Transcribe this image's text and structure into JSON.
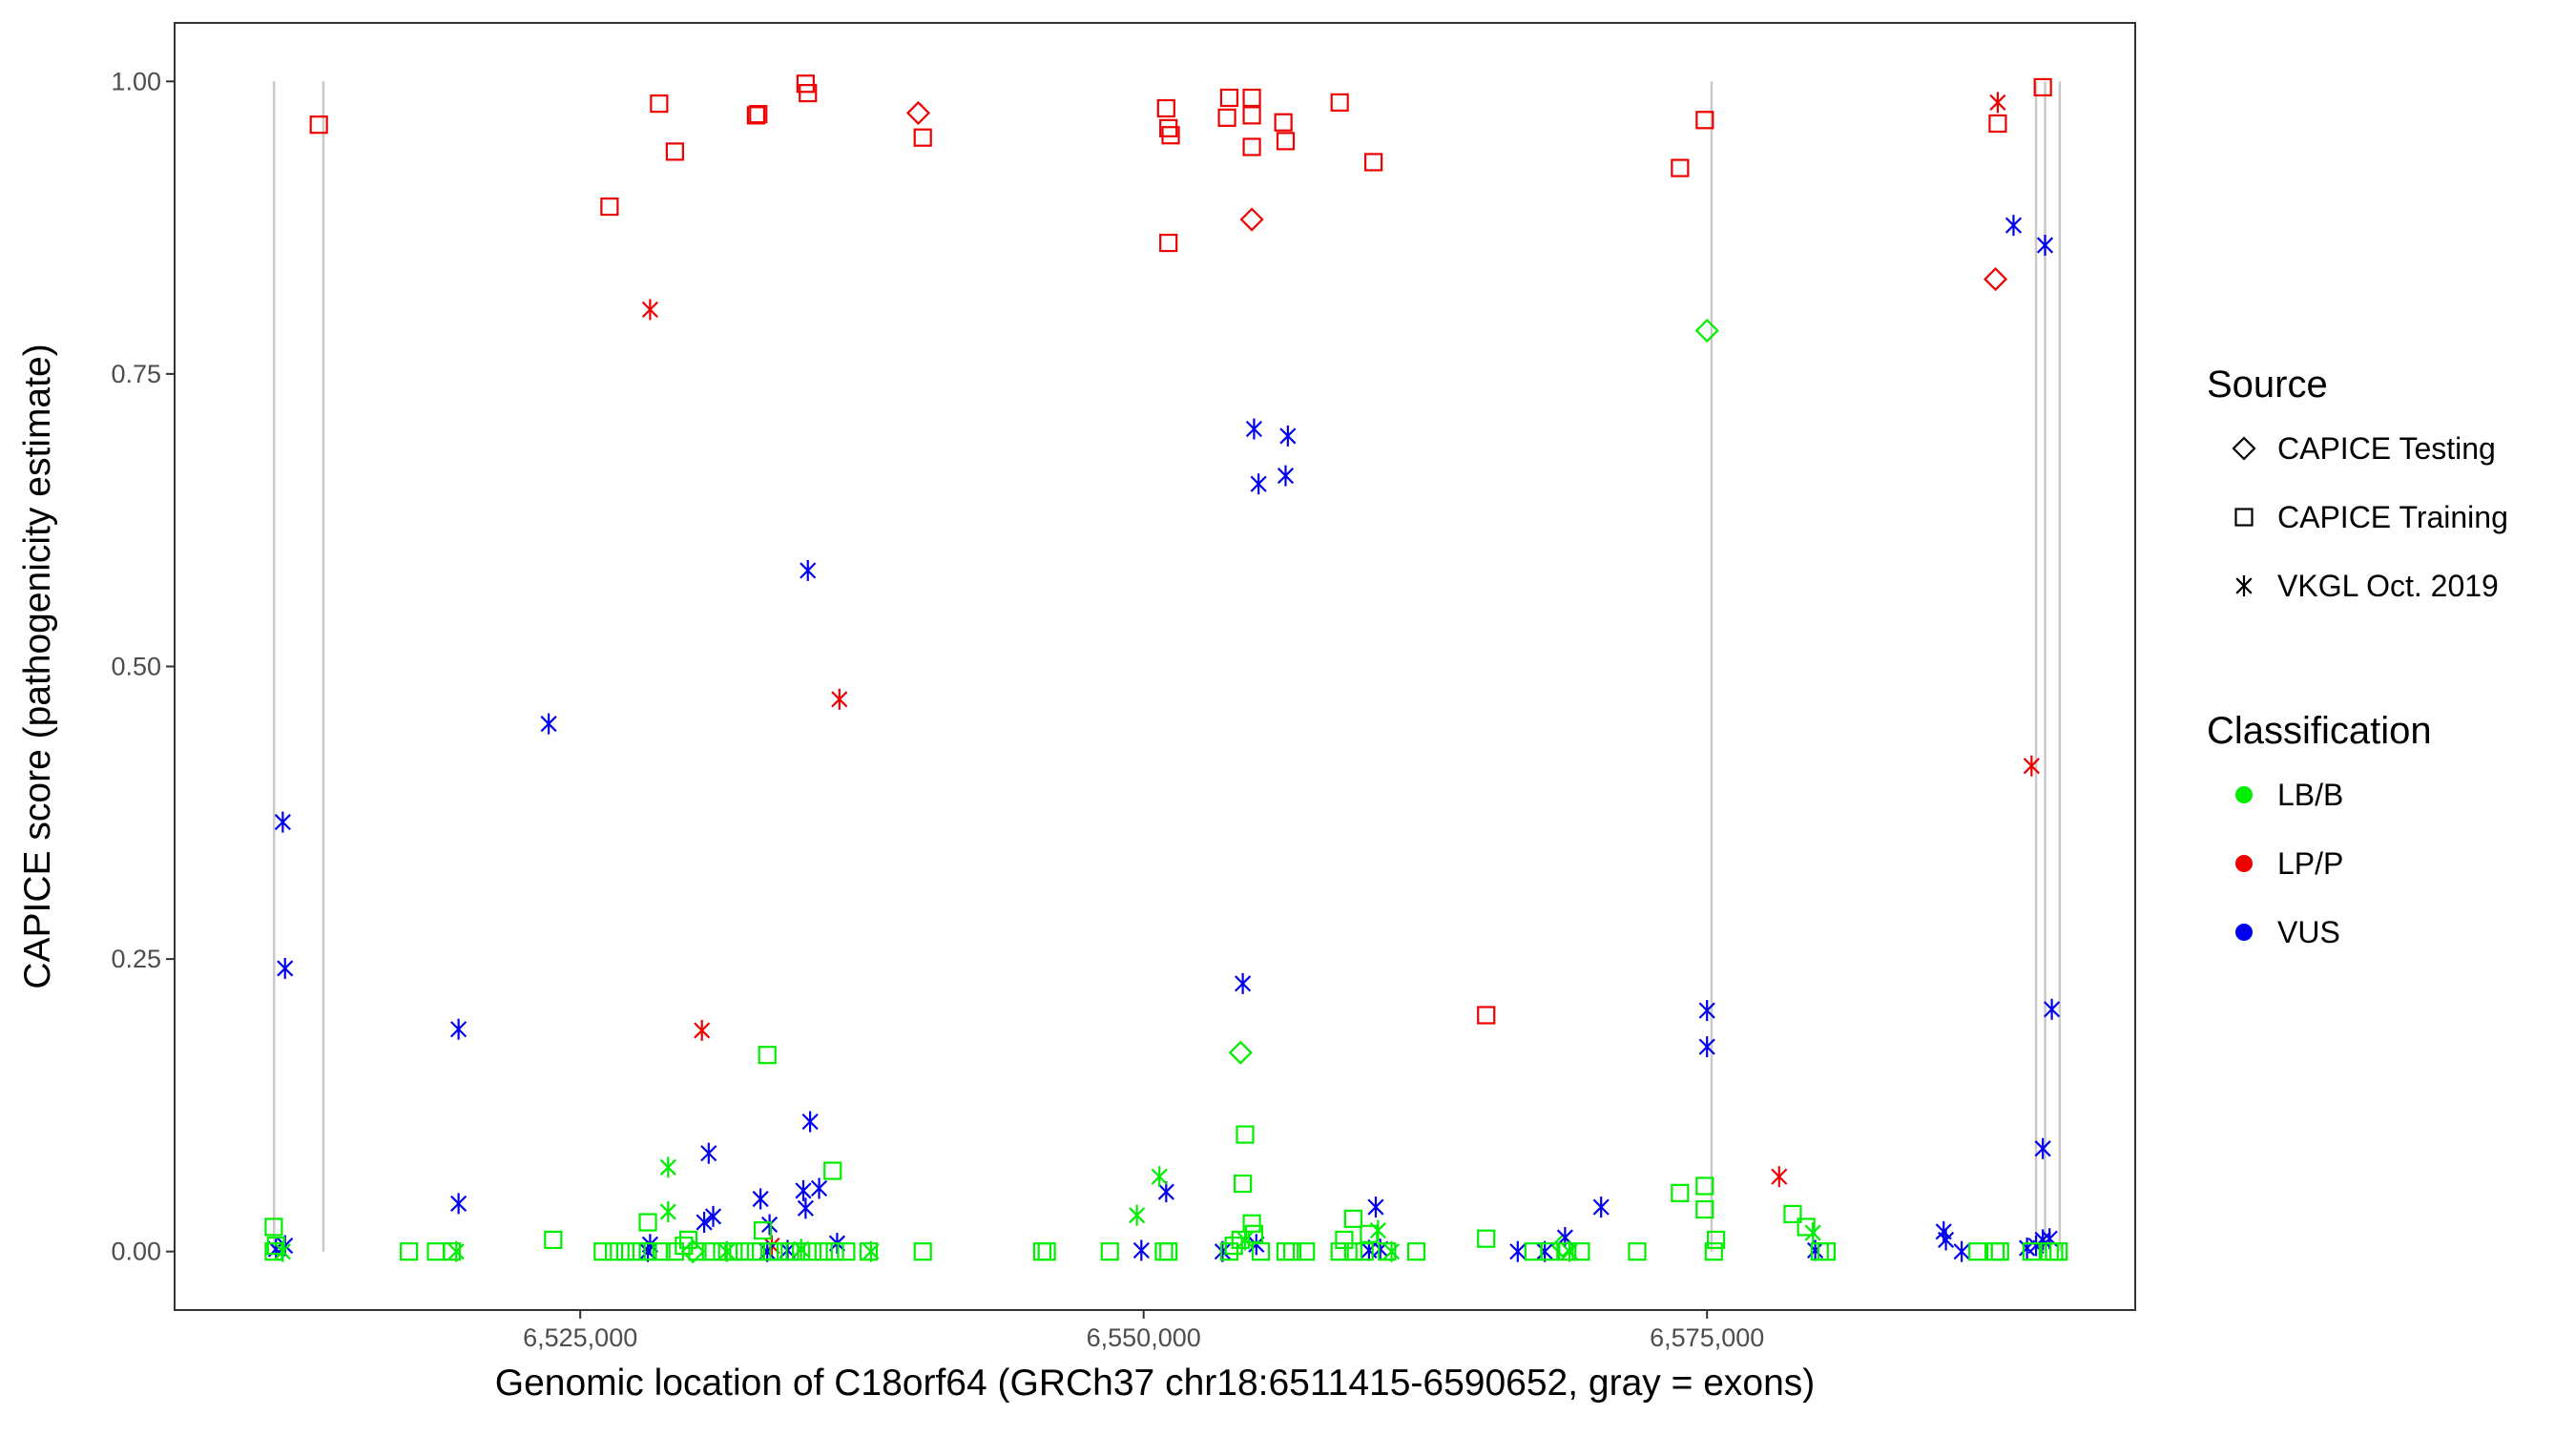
{
  "chart_data": {
    "type": "scatter",
    "xlabel": "Genomic location of C18orf64 (GRCh37 chr18:6511415-6590652, gray = exons)",
    "ylabel": "CAPICE score (pathogenicity estimate)",
    "xlim": [
      6507000,
      6594000
    ],
    "ylim": [
      -0.05,
      1.05
    ],
    "x_ticks": [
      6525000,
      6550000,
      6575000
    ],
    "x_tick_labels": [
      "6,525,000",
      "6,550,000",
      "6,575,000"
    ],
    "y_ticks": [
      0,
      0.25,
      0.5,
      0.75,
      1.0
    ],
    "y_tick_labels": [
      "0.00",
      "0.25",
      "0.50",
      "0.75",
      "1.00"
    ],
    "grid": false,
    "exon_positions": [
      6511415,
      6513600,
      6575200,
      6589600,
      6590000,
      6590652
    ],
    "legend_position": "right",
    "legend": {
      "source": {
        "title": "Source",
        "items": [
          {
            "label": "CAPICE Testing",
            "shape": "diamond"
          },
          {
            "label": "CAPICE Training",
            "shape": "square"
          },
          {
            "label": "VKGL Oct. 2019",
            "shape": "asterisk"
          }
        ]
      },
      "classification": {
        "title": "Classification",
        "items": [
          {
            "label": "LB/B",
            "color": "#00ee00"
          },
          {
            "label": "LP/P",
            "color": "#ee0000"
          },
          {
            "label": "VUS",
            "color": "#0000ee"
          }
        ]
      }
    },
    "colors": {
      "LB/B": "#00ee00",
      "LP/P": "#ee0000",
      "VUS": "#0000ee"
    },
    "series": [
      {
        "source": "CAPICE Training",
        "classification": "LP/P",
        "points": [
          [
            6513400,
            0.963
          ],
          [
            6526300,
            0.893
          ],
          [
            6528500,
            0.981
          ],
          [
            6529200,
            0.94
          ],
          [
            6532800,
            0.971
          ],
          [
            6532900,
            0.972
          ],
          [
            6535000,
            0.998
          ],
          [
            6535100,
            0.99
          ],
          [
            6540200,
            0.952
          ],
          [
            6551000,
            0.977
          ],
          [
            6551100,
            0.96
          ],
          [
            6551200,
            0.954
          ],
          [
            6551100,
            0.862
          ],
          [
            6553700,
            0.969
          ],
          [
            6553800,
            0.986
          ],
          [
            6554800,
            0.986
          ],
          [
            6554800,
            0.971
          ],
          [
            6554800,
            0.944
          ],
          [
            6556200,
            0.965
          ],
          [
            6556300,
            0.949
          ],
          [
            6558700,
            0.982
          ],
          [
            6560200,
            0.931
          ],
          [
            6565200,
            0.202
          ],
          [
            6573800,
            0.926
          ],
          [
            6574900,
            0.967
          ],
          [
            6587900,
            0.964
          ],
          [
            6589900,
            0.995
          ]
        ]
      },
      {
        "source": "CAPICE Testing",
        "classification": "LP/P",
        "points": [
          [
            6540000,
            0.973
          ],
          [
            6554800,
            0.882
          ],
          [
            6587800,
            0.831
          ]
        ]
      },
      {
        "source": "CAPICE Testing",
        "classification": "LB/B",
        "points": [
          [
            6575000,
            0.787
          ],
          [
            6554300,
            0.17
          ],
          [
            6530000,
            0.0
          ],
          [
            6568600,
            0.005
          ]
        ]
      },
      {
        "source": "VKGL Oct. 2019",
        "classification": "LP/P",
        "points": [
          [
            6528100,
            0.805
          ],
          [
            6536500,
            0.472
          ],
          [
            6530400,
            0.189
          ],
          [
            6578200,
            0.064
          ],
          [
            6589400,
            0.415
          ],
          [
            6587900,
            0.982
          ],
          [
            6533500,
            0.005
          ]
        ]
      },
      {
        "source": "VKGL Oct. 2019",
        "classification": "VUS",
        "points": [
          [
            6511800,
            0.367
          ],
          [
            6511900,
            0.242
          ],
          [
            6511900,
            0.005
          ],
          [
            6511500,
            0.002
          ],
          [
            6519600,
            0.19
          ],
          [
            6519600,
            0.041
          ],
          [
            6523600,
            0.451
          ],
          [
            6535100,
            0.582
          ],
          [
            6535200,
            0.111
          ],
          [
            6530700,
            0.084
          ],
          [
            6530500,
            0.025
          ],
          [
            6530900,
            0.03
          ],
          [
            6533000,
            0.045
          ],
          [
            6533400,
            0.023
          ],
          [
            6534900,
            0.052
          ],
          [
            6535600,
            0.054
          ],
          [
            6535000,
            0.037
          ],
          [
            6536400,
            0.007
          ],
          [
            6533300,
            0.0
          ],
          [
            6534200,
            0.001
          ],
          [
            6528000,
            0.0
          ],
          [
            6528100,
            0.006
          ],
          [
            6554400,
            0.229
          ],
          [
            6554900,
            0.703
          ],
          [
            6555100,
            0.656
          ],
          [
            6556400,
            0.697
          ],
          [
            6556300,
            0.663
          ],
          [
            6551000,
            0.051
          ],
          [
            6549900,
            0.001
          ],
          [
            6553500,
            0.0
          ],
          [
            6555000,
            0.006
          ],
          [
            6560300,
            0.038
          ],
          [
            6560000,
            0.001
          ],
          [
            6560500,
            0.002
          ],
          [
            6575000,
            0.206
          ],
          [
            6575000,
            0.175
          ],
          [
            6567800,
            0.0
          ],
          [
            6566600,
            0.0
          ],
          [
            6568700,
            0.012
          ],
          [
            6570300,
            0.038
          ],
          [
            6579800,
            0.001
          ],
          [
            6585500,
            0.017
          ],
          [
            6585600,
            0.01
          ],
          [
            6586300,
            0.0
          ],
          [
            6588600,
            0.877
          ],
          [
            6590000,
            0.86
          ],
          [
            6589900,
            0.088
          ],
          [
            6590300,
            0.207
          ],
          [
            6589600,
            0.005
          ],
          [
            6589900,
            0.01
          ],
          [
            6590200,
            0.011
          ],
          [
            6589200,
            0.003
          ]
        ]
      },
      {
        "source": "VKGL Oct. 2019",
        "classification": "LB/B",
        "points": [
          [
            6528900,
            0.072
          ],
          [
            6528900,
            0.034
          ],
          [
            6549700,
            0.031
          ],
          [
            6550700,
            0.064
          ],
          [
            6511800,
            0.0
          ],
          [
            6519500,
            0.0
          ],
          [
            6531500,
            0.0
          ],
          [
            6534800,
            0.002
          ],
          [
            6537900,
            0.0
          ],
          [
            6554500,
            0.01
          ],
          [
            6560400,
            0.018
          ],
          [
            6561000,
            0.0
          ],
          [
            6568900,
            0.0
          ],
          [
            6579700,
            0.016
          ]
        ]
      },
      {
        "source": "CAPICE Training",
        "classification": "LB/B",
        "points": [
          [
            6511400,
            0.021
          ],
          [
            6511500,
            0.005
          ],
          [
            6511400,
            0.0
          ],
          [
            6517400,
            0.0
          ],
          [
            6518600,
            0.0
          ],
          [
            6519300,
            0.0
          ],
          [
            6523800,
            0.01
          ],
          [
            6526000,
            0.0
          ],
          [
            6526500,
            0.0
          ],
          [
            6527000,
            0.0
          ],
          [
            6527500,
            0.0
          ],
          [
            6528000,
            0.025
          ],
          [
            6528000,
            0.0
          ],
          [
            6528600,
            0.0
          ],
          [
            6529200,
            0.0
          ],
          [
            6529600,
            0.005
          ],
          [
            6529800,
            0.01
          ],
          [
            6530200,
            0.0
          ],
          [
            6530800,
            0.0
          ],
          [
            6531300,
            0.0
          ],
          [
            6531800,
            0.0
          ],
          [
            6532300,
            0.0
          ],
          [
            6532800,
            0.0
          ],
          [
            6533100,
            0.018
          ],
          [
            6533300,
            0.168
          ],
          [
            6533400,
            0.0
          ],
          [
            6533800,
            0.0
          ],
          [
            6534300,
            0.0
          ],
          [
            6534800,
            0.0
          ],
          [
            6535300,
            0.0
          ],
          [
            6535800,
            0.0
          ],
          [
            6536200,
            0.069
          ],
          [
            6536300,
            0.0
          ],
          [
            6536800,
            0.0
          ],
          [
            6537800,
            0.0
          ],
          [
            6540200,
            0.0
          ],
          [
            6545500,
            0.0
          ],
          [
            6545700,
            0.0
          ],
          [
            6548500,
            0.0
          ],
          [
            6550900,
            0.0
          ],
          [
            6551100,
            0.0
          ],
          [
            6553800,
            0.0
          ],
          [
            6554000,
            0.005
          ],
          [
            6554300,
            0.01
          ],
          [
            6554400,
            0.058
          ],
          [
            6554500,
            0.1
          ],
          [
            6554800,
            0.024
          ],
          [
            6554900,
            0.015
          ],
          [
            6555200,
            0.0
          ],
          [
            6556300,
            0.0
          ],
          [
            6556600,
            0.0
          ],
          [
            6557200,
            0.0
          ],
          [
            6558700,
            0.0
          ],
          [
            6558900,
            0.01
          ],
          [
            6559300,
            0.028
          ],
          [
            6559300,
            0.0
          ],
          [
            6559800,
            0.0
          ],
          [
            6560000,
            0.015
          ],
          [
            6560800,
            0.0
          ],
          [
            6562100,
            0.0
          ],
          [
            6565200,
            0.011
          ],
          [
            6567300,
            0.0
          ],
          [
            6568000,
            0.0
          ],
          [
            6568800,
            0.0
          ],
          [
            6569400,
            0.0
          ],
          [
            6571900,
            0.0
          ],
          [
            6573800,
            0.05
          ],
          [
            6574900,
            0.056
          ],
          [
            6574900,
            0.036
          ],
          [
            6575400,
            0.01
          ],
          [
            6575300,
            0.0
          ],
          [
            6578800,
            0.032
          ],
          [
            6579400,
            0.021
          ],
          [
            6580000,
            0.0
          ],
          [
            6580300,
            0.0
          ],
          [
            6587000,
            0.0
          ],
          [
            6587800,
            0.0
          ],
          [
            6588000,
            0.0
          ],
          [
            6589400,
            0.0
          ],
          [
            6590200,
            0.0
          ],
          [
            6590400,
            0.0
          ],
          [
            6590600,
            0.0
          ]
        ]
      }
    ]
  }
}
